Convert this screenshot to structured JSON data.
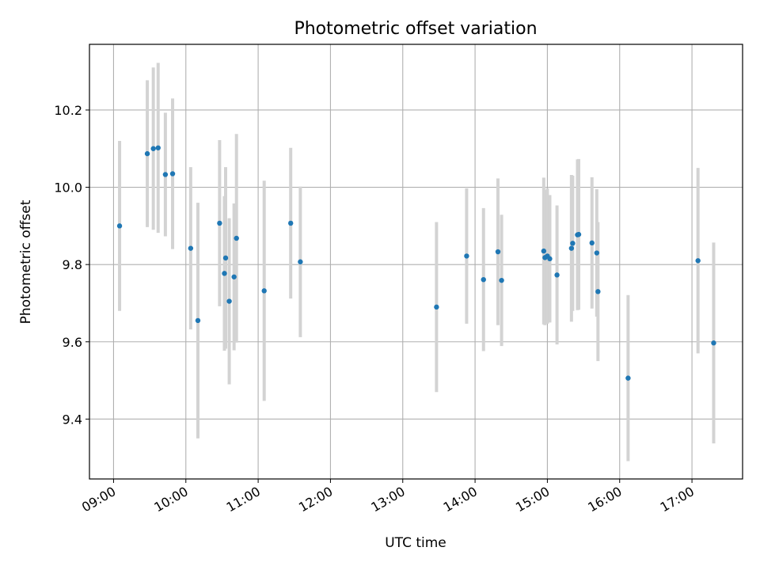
{
  "chart_data": {
    "type": "scatter",
    "title": "Photometric offset variation",
    "xlabel": "UTC time",
    "ylabel": "Photometric offset",
    "x_tick_labels": [
      "09:00",
      "10:00",
      "11:00",
      "12:00",
      "13:00",
      "14:00",
      "15:00",
      "16:00",
      "17:00"
    ],
    "y_tick_labels": [
      "9.4",
      "9.6",
      "9.8",
      "10.0",
      "10.2"
    ],
    "y_ticks": [
      9.4,
      9.6,
      9.8,
      10.0,
      10.2
    ],
    "xlim": [
      "08:40",
      "17:42"
    ],
    "ylim": [
      9.245,
      10.37
    ],
    "grid": true,
    "marker_color": "#1f77b4",
    "errorbar_color": "#d3d3d3",
    "series": [
      {
        "points": [
          {
            "x": "09:05",
            "y": 9.9,
            "err": 0.22
          },
          {
            "x": "09:28",
            "y": 10.087,
            "err": 0.19
          },
          {
            "x": "09:33",
            "y": 10.1,
            "err": 0.21
          },
          {
            "x": "09:37",
            "y": 10.102,
            "err": 0.22
          },
          {
            "x": "09:43",
            "y": 10.033,
            "err": 0.16
          },
          {
            "x": "09:49",
            "y": 10.035,
            "err": 0.195
          },
          {
            "x": "10:04",
            "y": 9.842,
            "err": 0.21
          },
          {
            "x": "10:10",
            "y": 9.655,
            "err": 0.305
          },
          {
            "x": "10:28",
            "y": 9.907,
            "err": 0.215
          },
          {
            "x": "10:32",
            "y": 9.777,
            "err": 0.2
          },
          {
            "x": "10:33",
            "y": 9.817,
            "err": 0.235
          },
          {
            "x": "10:36",
            "y": 9.705,
            "err": 0.215
          },
          {
            "x": "10:40",
            "y": 9.768,
            "err": 0.19
          },
          {
            "x": "10:42",
            "y": 9.868,
            "err": 0.27
          },
          {
            "x": "11:05",
            "y": 9.732,
            "err": 0.285
          },
          {
            "x": "11:27",
            "y": 9.907,
            "err": 0.195
          },
          {
            "x": "11:35",
            "y": 9.807,
            "err": 0.195
          },
          {
            "x": "13:28",
            "y": 9.69,
            "err": 0.22
          },
          {
            "x": "13:53",
            "y": 9.822,
            "err": 0.175
          },
          {
            "x": "14:07",
            "y": 9.761,
            "err": 0.185
          },
          {
            "x": "14:19",
            "y": 9.833,
            "err": 0.19
          },
          {
            "x": "14:22",
            "y": 9.759,
            "err": 0.17
          },
          {
            "x": "14:57",
            "y": 9.835,
            "err": 0.19
          },
          {
            "x": "14:58",
            "y": 9.818,
            "err": 0.175
          },
          {
            "x": "15:00",
            "y": 9.822,
            "err": 0.175
          },
          {
            "x": "15:02",
            "y": 9.815,
            "err": 0.165
          },
          {
            "x": "15:08",
            "y": 9.773,
            "err": 0.18
          },
          {
            "x": "15:20",
            "y": 9.842,
            "err": 0.19
          },
          {
            "x": "15:21",
            "y": 9.855,
            "err": 0.175
          },
          {
            "x": "15:25",
            "y": 9.877,
            "err": 0.195
          },
          {
            "x": "15:26",
            "y": 9.878,
            "err": 0.195
          },
          {
            "x": "15:37",
            "y": 9.856,
            "err": 0.17
          },
          {
            "x": "15:41",
            "y": 9.83,
            "err": 0.165
          },
          {
            "x": "15:42",
            "y": 9.73,
            "err": 0.18
          },
          {
            "x": "16:07",
            "y": 9.506,
            "err": 0.215
          },
          {
            "x": "17:05",
            "y": 9.81,
            "err": 0.24
          },
          {
            "x": "17:18",
            "y": 9.597,
            "err": 0.26
          }
        ]
      }
    ]
  }
}
